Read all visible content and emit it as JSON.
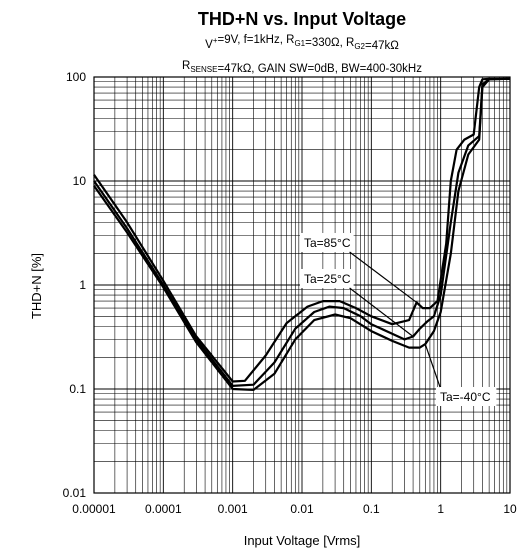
{
  "chart_data": {
    "type": "line",
    "title": "THD+N vs. Input Voltage",
    "subtitle_line1": "V⁺=9V, f=1kHz, R_G1=330Ω, R_G2=47kΩ",
    "subtitle_line2": "R_SENSE=47kΩ, GAIN SW=0dB, BW=400-30kHz",
    "xlabel": "Input Voltage [Vrms]",
    "ylabel": "THD+N [%]",
    "x_scale": "log",
    "y_scale": "log",
    "xlim": [
      1e-05,
      10
    ],
    "ylim": [
      0.01,
      100
    ],
    "grid": true,
    "x_ticks": [
      {
        "value": 1e-05,
        "label": "0.00001"
      },
      {
        "value": 0.0001,
        "label": "0.0001"
      },
      {
        "value": 0.001,
        "label": "0.001"
      },
      {
        "value": 0.01,
        "label": "0.01"
      },
      {
        "value": 0.1,
        "label": "0.1"
      },
      {
        "value": 1,
        "label": "1"
      },
      {
        "value": 10,
        "label": "10"
      }
    ],
    "y_ticks": [
      {
        "value": 0.01,
        "label": "0.01"
      },
      {
        "value": 0.1,
        "label": "0.1"
      },
      {
        "value": 1,
        "label": "1"
      },
      {
        "value": 10,
        "label": "10"
      },
      {
        "value": 100,
        "label": "100"
      }
    ],
    "series": [
      {
        "name": "Ta=85°C",
        "x": [
          1e-05,
          3e-05,
          0.0001,
          0.0003,
          0.001,
          0.0015,
          0.003,
          0.006,
          0.012,
          0.02,
          0.035,
          0.06,
          0.1,
          0.2,
          0.35,
          0.45,
          0.55,
          0.7,
          0.9,
          1.2,
          1.4,
          1.7,
          2.2,
          3.0,
          3.6,
          4.0,
          5.0,
          10
        ],
        "y": [
          11.5,
          4.0,
          1.1,
          0.32,
          0.118,
          0.12,
          0.21,
          0.43,
          0.62,
          0.7,
          0.7,
          0.6,
          0.5,
          0.42,
          0.46,
          0.68,
          0.6,
          0.6,
          0.7,
          2.5,
          10,
          20,
          25,
          28,
          80,
          95,
          96,
          96
        ]
      },
      {
        "name": "Ta=25°C",
        "x": [
          1e-05,
          3e-05,
          0.0001,
          0.0003,
          0.001,
          0.002,
          0.004,
          0.008,
          0.015,
          0.025,
          0.04,
          0.07,
          0.1,
          0.2,
          0.3,
          0.4,
          0.5,
          0.65,
          0.8,
          1.0,
          1.4,
          1.8,
          2.5,
          3.6,
          4.0,
          5.0,
          10
        ],
        "y": [
          10.0,
          3.5,
          1.0,
          0.3,
          0.107,
          0.11,
          0.18,
          0.38,
          0.55,
          0.62,
          0.6,
          0.5,
          0.42,
          0.34,
          0.3,
          0.32,
          0.38,
          0.45,
          0.5,
          0.8,
          4.0,
          12,
          22,
          27,
          85,
          95,
          96
        ]
      },
      {
        "name": "Ta=-40°C",
        "x": [
          1e-05,
          3e-05,
          0.0001,
          0.0003,
          0.001,
          0.002,
          0.004,
          0.008,
          0.015,
          0.03,
          0.05,
          0.1,
          0.2,
          0.35,
          0.5,
          0.6,
          0.8,
          1.0,
          1.4,
          1.8,
          2.5,
          3.6,
          4.0,
          5.0,
          10
        ],
        "y": [
          9.0,
          3.2,
          0.95,
          0.28,
          0.1,
          0.098,
          0.14,
          0.3,
          0.46,
          0.52,
          0.48,
          0.36,
          0.29,
          0.25,
          0.25,
          0.27,
          0.36,
          0.55,
          2.0,
          8.0,
          18,
          25,
          80,
          95,
          96
        ]
      }
    ],
    "annotations": [
      {
        "text": "Ta=85°C",
        "series": "Ta=85°C"
      },
      {
        "text": "Ta=25°C",
        "series": "Ta=25°C"
      },
      {
        "text": "Ta=-40°C",
        "series": "Ta=-40°C"
      }
    ]
  }
}
